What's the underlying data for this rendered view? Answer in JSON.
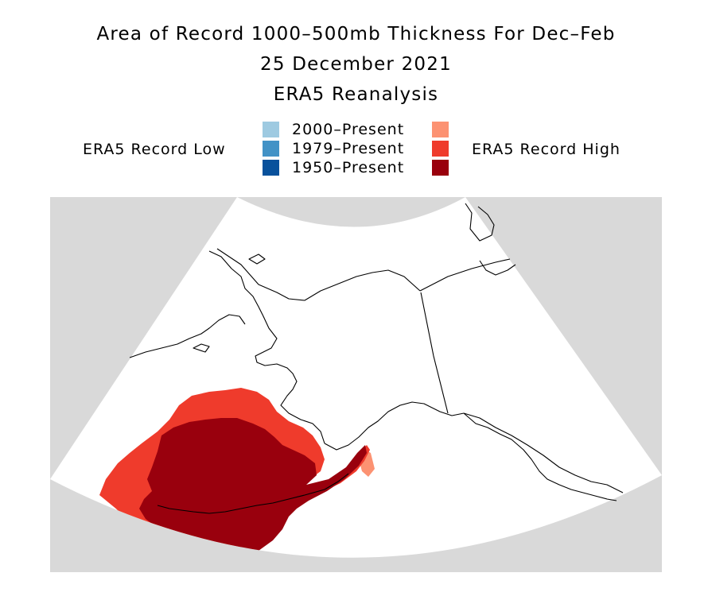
{
  "header": {
    "title": "Area of Record 1000–500mb Thickness For Dec–Feb",
    "date": "25 December 2021",
    "source": "ERA5 Reanalysis"
  },
  "legend": {
    "low_label": "ERA5 Record Low",
    "high_label": "ERA5 Record High",
    "periods": [
      {
        "label": "2000–Present",
        "low_color": "#9ecae1",
        "high_color": "#fc9272"
      },
      {
        "label": "1979–Present",
        "low_color": "#4292c6",
        "high_color": "#ef3b2c"
      },
      {
        "label": "1950–Present",
        "low_color": "#08519c",
        "high_color": "#99000d"
      }
    ]
  },
  "map": {
    "region": "Alaska and Bering Sea",
    "background_color": "#d9d9d9",
    "projection_color": "#ffffff"
  }
}
